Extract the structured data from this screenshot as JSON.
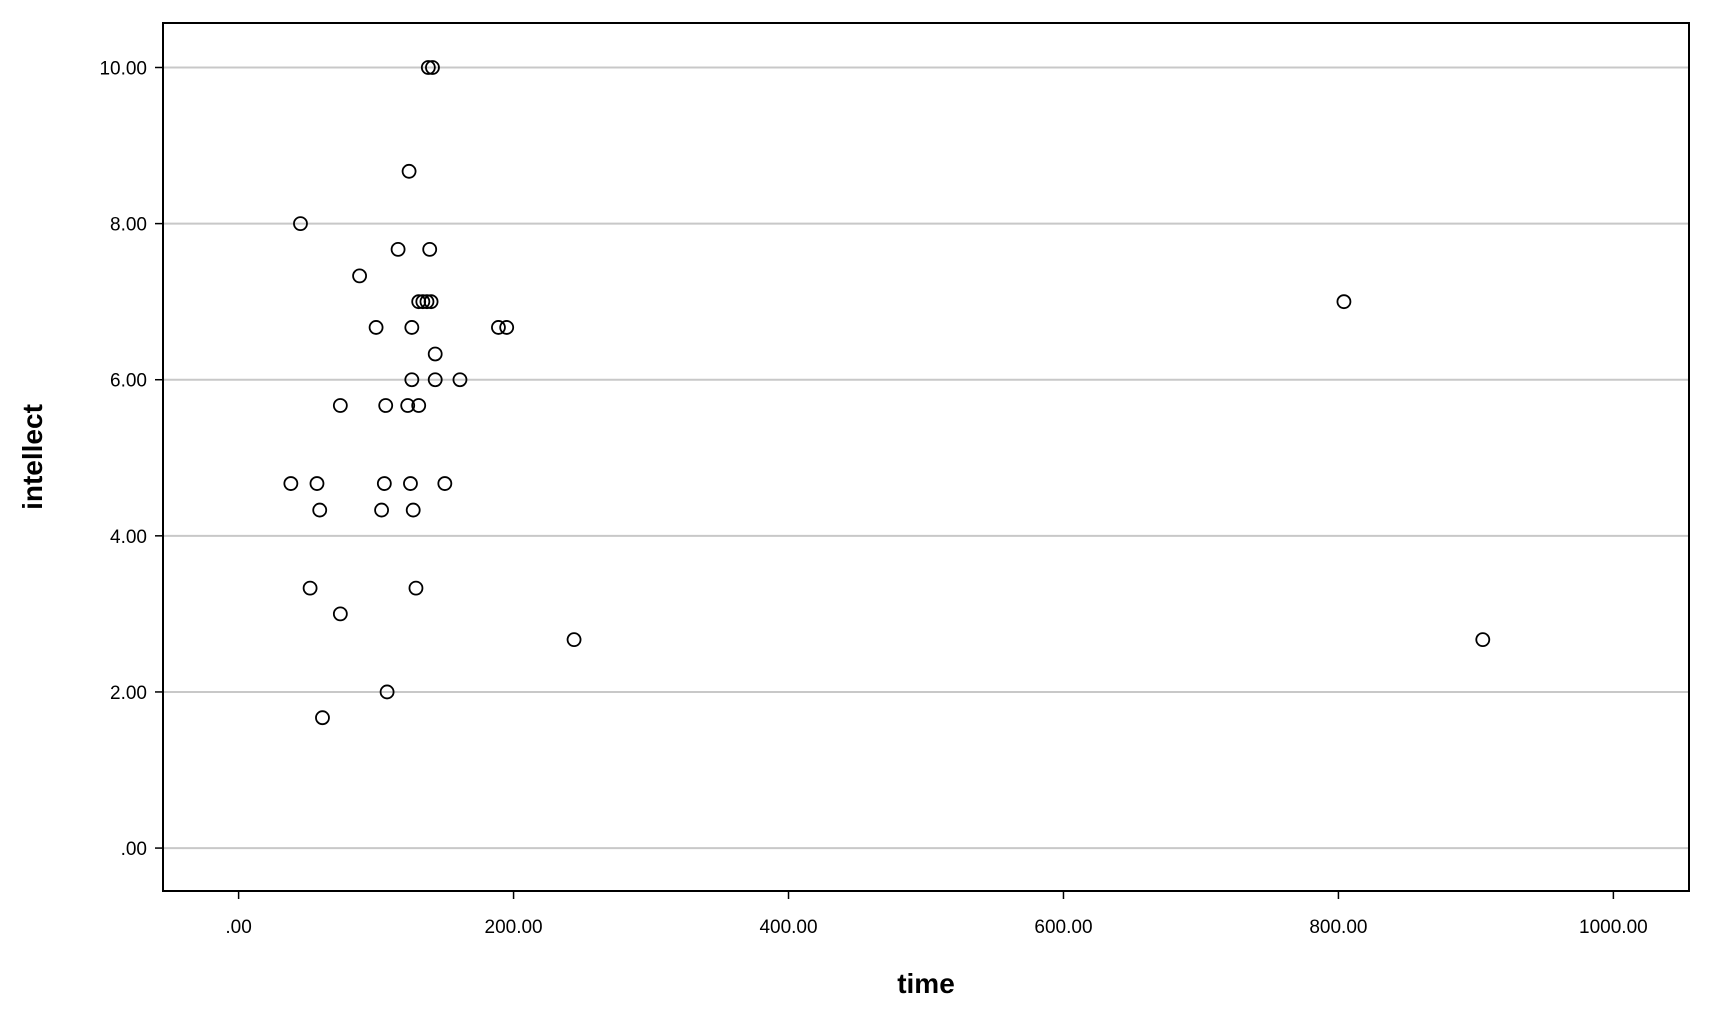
{
  "chart_data": {
    "type": "scatter",
    "xlabel": "time",
    "ylabel": "intellect",
    "xlim": [
      -55,
      1055
    ],
    "ylim": [
      -0.55,
      10.57
    ],
    "x_ticks": [
      0,
      200,
      400,
      600,
      800,
      1000
    ],
    "x_tick_labels": [
      ".00",
      "200.00",
      "400.00",
      "600.00",
      "800.00",
      "1000.00"
    ],
    "y_ticks": [
      0,
      2,
      4,
      6,
      8,
      10
    ],
    "y_tick_labels": [
      ".00",
      "2.00",
      "4.00",
      "6.00",
      "8.00",
      "10.00"
    ],
    "grid": "horizontal",
    "marker": "open-circle",
    "points": [
      {
        "x": 138,
        "y": 10.0
      },
      {
        "x": 141,
        "y": 10.0
      },
      {
        "x": 124,
        "y": 8.67
      },
      {
        "x": 45,
        "y": 8.0
      },
      {
        "x": 116,
        "y": 7.67
      },
      {
        "x": 139,
        "y": 7.67
      },
      {
        "x": 88,
        "y": 7.33
      },
      {
        "x": 131,
        "y": 7.0
      },
      {
        "x": 134,
        "y": 7.0
      },
      {
        "x": 137,
        "y": 7.0
      },
      {
        "x": 140,
        "y": 7.0
      },
      {
        "x": 100,
        "y": 6.67
      },
      {
        "x": 126,
        "y": 6.67
      },
      {
        "x": 189,
        "y": 6.67
      },
      {
        "x": 195,
        "y": 6.67
      },
      {
        "x": 143,
        "y": 6.33
      },
      {
        "x": 126,
        "y": 6.0
      },
      {
        "x": 143,
        "y": 6.0
      },
      {
        "x": 161,
        "y": 6.0
      },
      {
        "x": 74,
        "y": 5.67
      },
      {
        "x": 107,
        "y": 5.67
      },
      {
        "x": 123,
        "y": 5.67
      },
      {
        "x": 131,
        "y": 5.67
      },
      {
        "x": 38,
        "y": 4.67
      },
      {
        "x": 57,
        "y": 4.67
      },
      {
        "x": 106,
        "y": 4.67
      },
      {
        "x": 125,
        "y": 4.67
      },
      {
        "x": 150,
        "y": 4.67
      },
      {
        "x": 59,
        "y": 4.33
      },
      {
        "x": 104,
        "y": 4.33
      },
      {
        "x": 127,
        "y": 4.33
      },
      {
        "x": 52,
        "y": 3.33
      },
      {
        "x": 129,
        "y": 3.33
      },
      {
        "x": 74,
        "y": 3.0
      },
      {
        "x": 244,
        "y": 2.67
      },
      {
        "x": 108,
        "y": 2.0
      },
      {
        "x": 61,
        "y": 1.67
      },
      {
        "x": 804,
        "y": 7.0
      },
      {
        "x": 905,
        "y": 2.67
      }
    ]
  }
}
